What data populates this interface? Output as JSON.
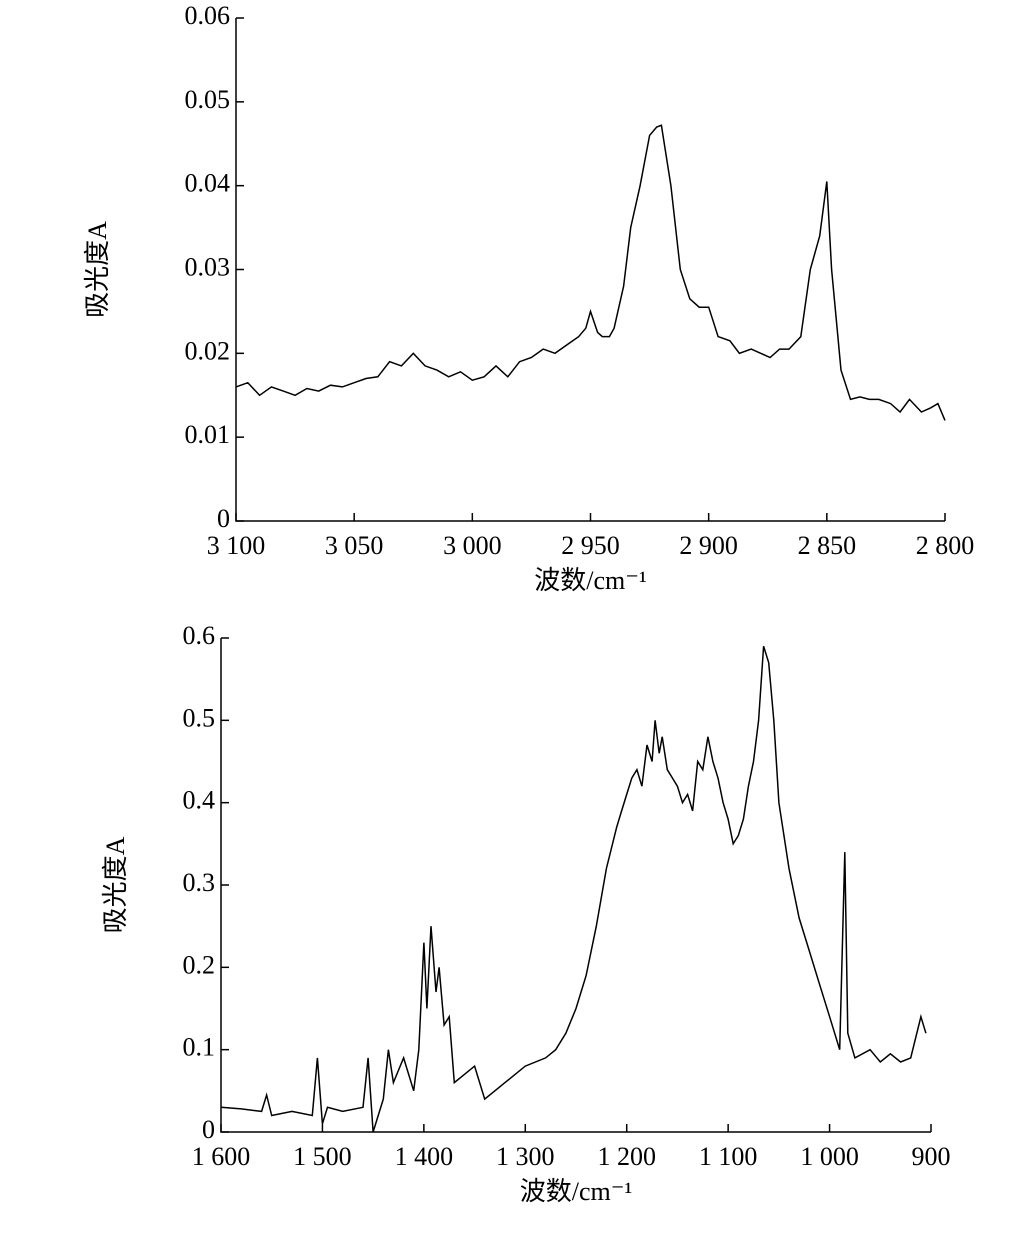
{
  "chart_data": [
    {
      "type": "line",
      "ylabel": "吸光度A",
      "xlabel": "波数/cm⁻¹",
      "color": "#000000",
      "xlim": [
        3100,
        2800
      ],
      "ylim": [
        0,
        0.06
      ],
      "xticks": [
        {
          "value": 3100,
          "label": "3 100"
        },
        {
          "value": 3050,
          "label": "3 050"
        },
        {
          "value": 3000,
          "label": "3 000"
        },
        {
          "value": 2950,
          "label": "2 950"
        },
        {
          "value": 2900,
          "label": "2 900"
        },
        {
          "value": 2850,
          "label": "2 850"
        },
        {
          "value": 2800,
          "label": "2 800"
        }
      ],
      "yticks": [
        0,
        0.01,
        0.02,
        0.03,
        0.04,
        0.05,
        0.06
      ],
      "x": [
        3100,
        3095,
        3090,
        3085,
        3080,
        3075,
        3070,
        3065,
        3060,
        3055,
        3050,
        3045,
        3040,
        3035,
        3030,
        3025,
        3020,
        3015,
        3010,
        3005,
        3000,
        2995,
        2990,
        2985,
        2980,
        2975,
        2970,
        2965,
        2960,
        2955,
        2952,
        2950,
        2947,
        2945,
        2942,
        2940,
        2936,
        2933,
        2929,
        2925,
        2922,
        2920,
        2916,
        2912,
        2908,
        2904,
        2900,
        2896,
        2891,
        2887,
        2882,
        2878,
        2874,
        2870,
        2866,
        2861,
        2857,
        2853,
        2850,
        2848,
        2844,
        2840,
        2836,
        2832,
        2828,
        2823,
        2819,
        2815,
        2810,
        2806,
        2803,
        2800
      ],
      "values": [
        0.016,
        0.0165,
        0.015,
        0.016,
        0.0155,
        0.015,
        0.0158,
        0.0155,
        0.0162,
        0.016,
        0.0165,
        0.017,
        0.0172,
        0.019,
        0.0185,
        0.02,
        0.0185,
        0.018,
        0.0172,
        0.0178,
        0.0168,
        0.0172,
        0.0185,
        0.0172,
        0.019,
        0.0195,
        0.0205,
        0.02,
        0.021,
        0.022,
        0.023,
        0.025,
        0.0225,
        0.022,
        0.022,
        0.023,
        0.028,
        0.035,
        0.04,
        0.046,
        0.047,
        0.0472,
        0.04,
        0.03,
        0.0265,
        0.0255,
        0.0255,
        0.022,
        0.0215,
        0.02,
        0.0205,
        0.02,
        0.0195,
        0.0205,
        0.0205,
        0.022,
        0.03,
        0.034,
        0.0405,
        0.03,
        0.018,
        0.0145,
        0.0148,
        0.0145,
        0.0145,
        0.014,
        0.013,
        0.0145,
        0.013,
        0.0135,
        0.014,
        0.012
      ]
    },
    {
      "type": "line",
      "ylabel": "吸光度A",
      "xlabel": "波数/cm⁻¹",
      "color": "#000000",
      "xlim": [
        1600,
        900
      ],
      "ylim": [
        0,
        0.6
      ],
      "xticks": [
        {
          "value": 1600,
          "label": "1 600"
        },
        {
          "value": 1500,
          "label": "1 500"
        },
        {
          "value": 1400,
          "label": "1 400"
        },
        {
          "value": 1300,
          "label": "1 300"
        },
        {
          "value": 1200,
          "label": "1 200"
        },
        {
          "value": 1100,
          "label": "1 100"
        },
        {
          "value": 1000,
          "label": "1 000"
        },
        900
      ],
      "yticks": [
        0,
        0.1,
        0.2,
        0.3,
        0.4,
        0.5,
        0.6
      ],
      "x": [
        1600,
        1580,
        1560,
        1555,
        1550,
        1530,
        1510,
        1505,
        1500,
        1495,
        1480,
        1460,
        1455,
        1450,
        1440,
        1435,
        1430,
        1420,
        1410,
        1405,
        1400,
        1397,
        1393,
        1388,
        1385,
        1380,
        1375,
        1370,
        1360,
        1350,
        1340,
        1330,
        1320,
        1300,
        1280,
        1270,
        1260,
        1250,
        1240,
        1230,
        1220,
        1210,
        1205,
        1200,
        1195,
        1190,
        1185,
        1180,
        1175,
        1172,
        1168,
        1165,
        1160,
        1155,
        1150,
        1145,
        1140,
        1135,
        1130,
        1125,
        1120,
        1115,
        1110,
        1105,
        1100,
        1095,
        1090,
        1085,
        1080,
        1075,
        1070,
        1065,
        1060,
        1055,
        1050,
        1040,
        1030,
        1020,
        1010,
        1000,
        990,
        985,
        982,
        975,
        960,
        950,
        940,
        930,
        920,
        910,
        905
      ],
      "values": [
        0.03,
        0.028,
        0.025,
        0.045,
        0.02,
        0.025,
        0.02,
        0.09,
        0.01,
        0.03,
        0.025,
        0.03,
        0.09,
        0.0,
        0.04,
        0.1,
        0.06,
        0.09,
        0.05,
        0.1,
        0.23,
        0.15,
        0.25,
        0.17,
        0.2,
        0.13,
        0.14,
        0.06,
        0.07,
        0.08,
        0.04,
        0.05,
        0.06,
        0.08,
        0.09,
        0.1,
        0.12,
        0.15,
        0.19,
        0.25,
        0.32,
        0.37,
        0.39,
        0.41,
        0.43,
        0.44,
        0.42,
        0.47,
        0.45,
        0.5,
        0.46,
        0.48,
        0.44,
        0.43,
        0.42,
        0.4,
        0.41,
        0.39,
        0.45,
        0.44,
        0.48,
        0.45,
        0.43,
        0.4,
        0.38,
        0.35,
        0.36,
        0.38,
        0.42,
        0.45,
        0.5,
        0.59,
        0.57,
        0.5,
        0.4,
        0.32,
        0.26,
        0.22,
        0.18,
        0.14,
        0.1,
        0.34,
        0.12,
        0.09,
        0.1,
        0.085,
        0.095,
        0.085,
        0.09,
        0.14,
        0.12
      ]
    }
  ]
}
